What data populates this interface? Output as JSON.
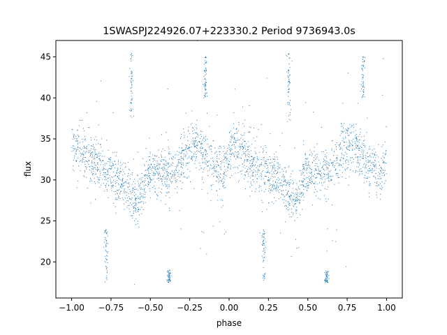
{
  "chart_data": {
    "type": "scatter",
    "title": "1SWASPJ224926.07+223330.2 Period 9736943.0s",
    "xlabel": "phase",
    "ylabel": "flux",
    "xlim": [
      -1.1,
      1.1
    ],
    "ylim": [
      15.6,
      47.0
    ],
    "xticks": [
      -1.0,
      -0.75,
      -0.5,
      -0.25,
      0.0,
      0.25,
      0.5,
      0.75,
      1.0
    ],
    "xtick_labels": [
      "−1.00",
      "−0.75",
      "−0.50",
      "−0.25",
      "0.00",
      "0.25",
      "0.50",
      "0.75",
      "1.00"
    ],
    "yticks": [
      20,
      25,
      30,
      35,
      40,
      45
    ],
    "ytick_labels": [
      "20",
      "25",
      "30",
      "35",
      "40",
      "45"
    ],
    "grid": false,
    "marker_color": "#1f77b4",
    "trend": {
      "description": "Folded light curve, pattern repeats with period 1 in phase",
      "phase_points": [
        0.0,
        0.04,
        0.08,
        0.12,
        0.16,
        0.2,
        0.24,
        0.28,
        0.32,
        0.36,
        0.4,
        0.44,
        0.48,
        0.52,
        0.56,
        0.6,
        0.64,
        0.68,
        0.72,
        0.76,
        0.8,
        0.84,
        0.88,
        0.92,
        0.96,
        1.0
      ],
      "flux_values": [
        33.5,
        34.0,
        33.5,
        32.5,
        31.8,
        31.2,
        30.8,
        30.5,
        30.0,
        29.0,
        27.5,
        27.8,
        31.0,
        31.0,
        30.8,
        31.0,
        30.8,
        31.8,
        33.5,
        34.2,
        34.8,
        33.0,
        32.0,
        31.5,
        30.5,
        33.5
      ]
    },
    "outlier_clusters": [
      {
        "x": -0.78,
        "y_range": [
          17.5,
          24.0
        ]
      },
      {
        "x": -0.62,
        "y_range": [
          37.0,
          45.5
        ]
      },
      {
        "x": -0.38,
        "y_range": [
          17.5,
          19.0
        ]
      },
      {
        "x": -0.15,
        "y_range": [
          40.0,
          45.0
        ]
      },
      {
        "x": 0.22,
        "y_range": [
          17.5,
          24.0
        ]
      },
      {
        "x": 0.38,
        "y_range": [
          37.0,
          45.5
        ]
      },
      {
        "x": 0.62,
        "y_range": [
          17.5,
          19.0
        ]
      },
      {
        "x": 0.85,
        "y_range": [
          40.0,
          45.0
        ]
      }
    ]
  }
}
